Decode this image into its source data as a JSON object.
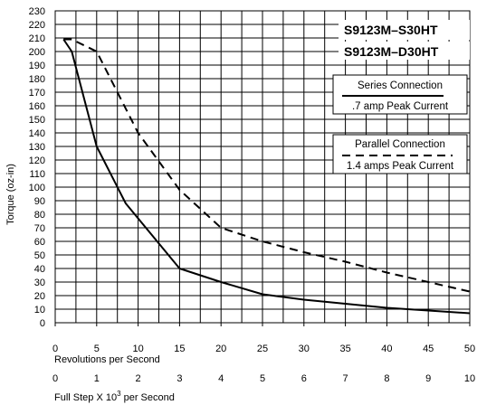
{
  "chart_data": {
    "type": "line",
    "ylabel": "Torque (oz-in)",
    "xlabel": "Revolutions per Second",
    "x2label": "Full Step X 10",
    "x2label_sup": "3",
    "x2label_tail": " per Second",
    "xlim": [
      0,
      50
    ],
    "ylim": [
      0,
      230
    ],
    "x_ticks": [
      0,
      5,
      10,
      15,
      20,
      25,
      30,
      35,
      40,
      45,
      50
    ],
    "x2_ticks": [
      0,
      1,
      2,
      3,
      4,
      5,
      6,
      7,
      8,
      9,
      10
    ],
    "y_ticks": [
      0,
      10,
      20,
      30,
      40,
      50,
      60,
      70,
      80,
      90,
      100,
      110,
      120,
      130,
      140,
      150,
      160,
      170,
      180,
      190,
      200,
      210,
      220,
      230
    ],
    "grid": true,
    "models": [
      "S9123M–S30HT",
      "S9123M–D30HT"
    ],
    "series": [
      {
        "legend_title": "Series Connection",
        "legend_sub": ".7 amp Peak Current",
        "style": "solid",
        "x": [
          1,
          2,
          5,
          8.5,
          15,
          20,
          25,
          30,
          35,
          40,
          45,
          50
        ],
        "y": [
          209,
          200,
          130,
          88,
          40,
          30,
          21,
          17,
          14,
          11,
          9,
          7
        ]
      },
      {
        "legend_title": "Parallel Connection",
        "legend_sub": "1.4 amps Peak Current",
        "style": "dashed",
        "x": [
          1,
          2,
          5,
          10,
          15,
          20,
          25,
          30,
          35,
          40,
          45,
          50
        ],
        "y": [
          209,
          209,
          200,
          140,
          98,
          70,
          60,
          52,
          45,
          37,
          30,
          23
        ]
      }
    ]
  },
  "colors": {
    "line": "#000000",
    "grid": "#000000"
  }
}
